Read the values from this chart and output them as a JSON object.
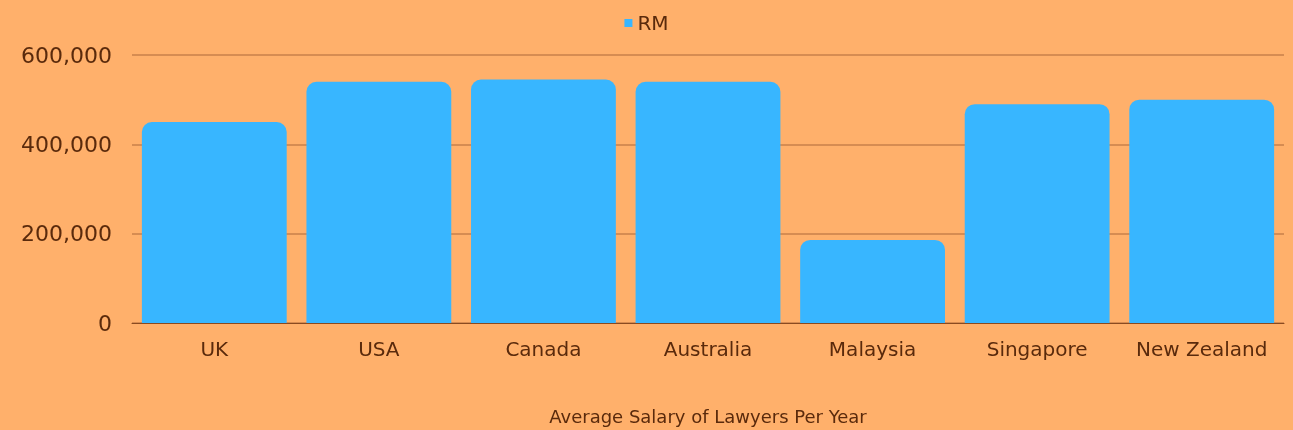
{
  "chart_data": {
    "type": "bar",
    "xlabel": "Average Salary of Lawyers Per Year",
    "categories": [
      "UK",
      "USA",
      "Canada",
      "Australia",
      "Malaysia",
      "Singapore",
      "New Zealand"
    ],
    "series": [
      {
        "name": "RM",
        "color": "#38b6ff",
        "values": [
          450000,
          540000,
          545000,
          540000,
          186000,
          490000,
          500000
        ]
      }
    ],
    "ylim": [
      0,
      600000
    ],
    "yticks": [
      0,
      {
        "value": 200000,
        "label": "200,000"
      },
      {
        "value": 400000,
        "label": "400,000"
      },
      {
        "value": 600000,
        "label": "600,000"
      }
    ],
    "grid": "y",
    "legend": "top"
  }
}
